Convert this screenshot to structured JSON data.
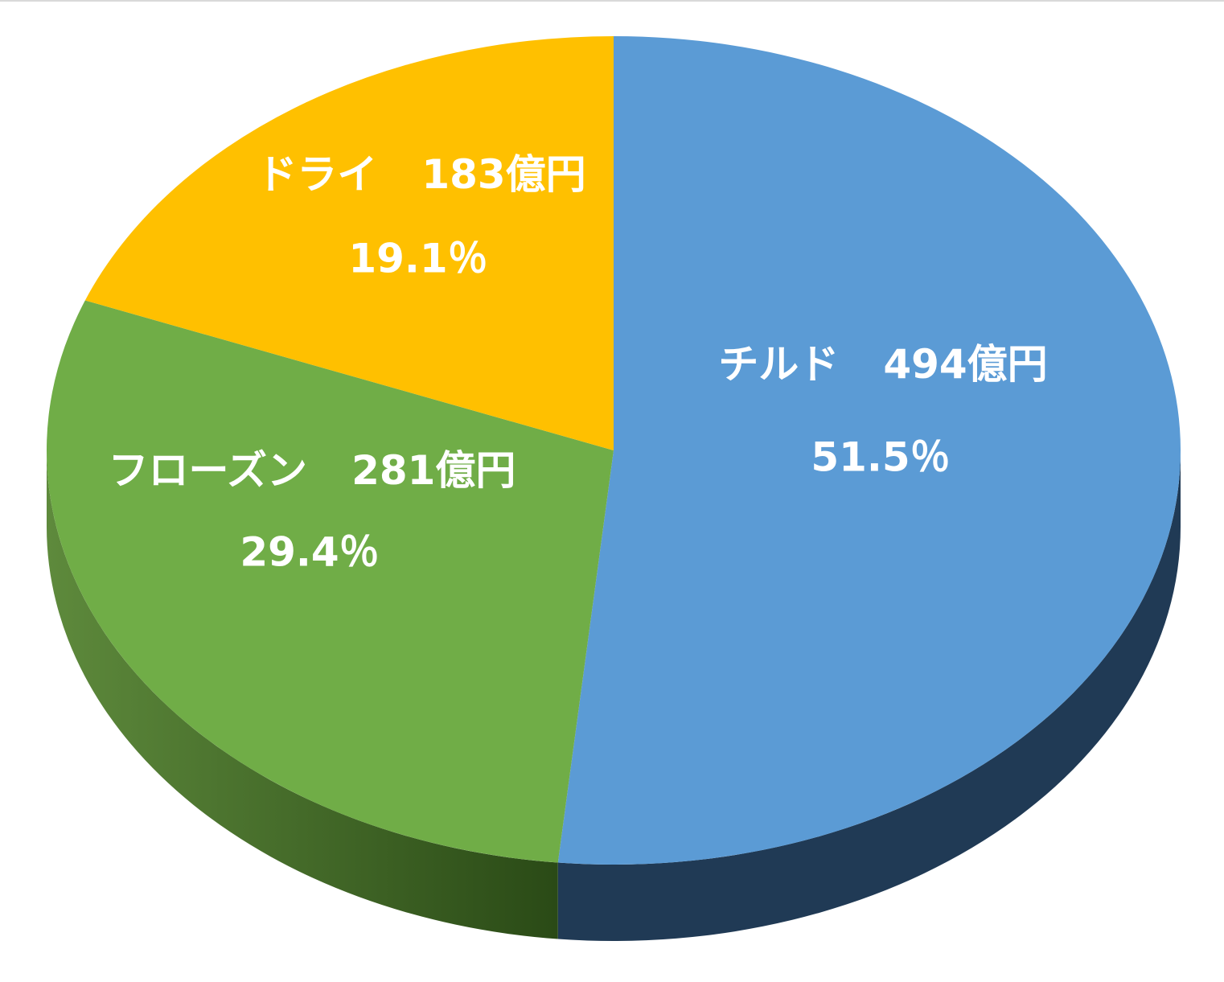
{
  "chart_data": {
    "type": "pie3d",
    "categories": [
      "チルド",
      "フローズン",
      "ドライ"
    ],
    "values": [
      494,
      281,
      183
    ],
    "value_labels": [
      "494億円",
      "281億円",
      "183億円"
    ],
    "percentages": [
      51.5,
      29.4,
      19.1
    ],
    "percentage_labels": [
      "51.5％",
      "29.4％",
      "19.1％"
    ],
    "colors": [
      "#5B9BD5",
      "#70AD47",
      "#FFC000"
    ],
    "side_colors": [
      "#203A55",
      "#3B5E24",
      "#8A6800"
    ]
  }
}
